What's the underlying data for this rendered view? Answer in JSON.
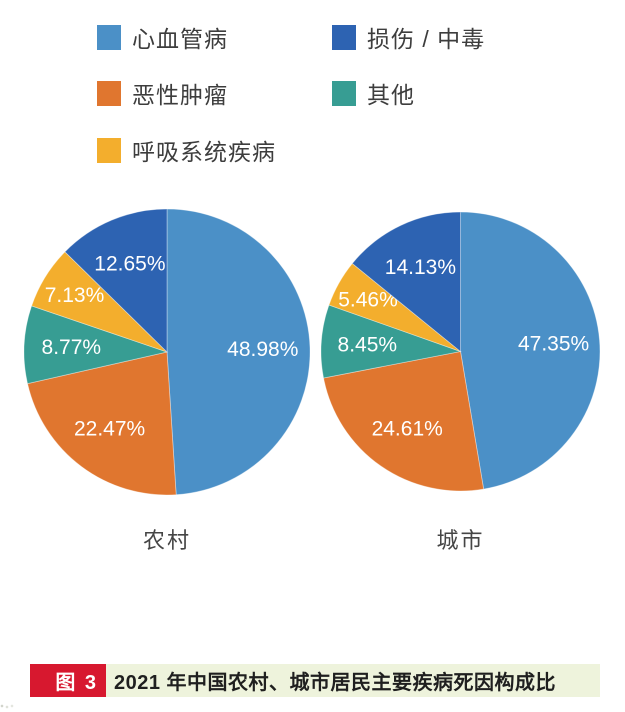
{
  "legend": {
    "items": [
      {
        "label": "心血管病",
        "color": "#4b90c7"
      },
      {
        "label": "损伤 / 中毒",
        "color": "#2d63b2"
      },
      {
        "label": "恶性肿瘤",
        "color": "#e0762f"
      },
      {
        "label": "其他",
        "color": "#379d93"
      },
      {
        "label": "呼吸系统疾病",
        "color": "#f3ae2d"
      }
    ]
  },
  "chart_data": [
    {
      "type": "pie",
      "title": "农村",
      "categories": [
        "心血管病",
        "恶性肿瘤",
        "其他",
        "呼吸系统疾病",
        "损伤 / 中毒"
      ],
      "values": [
        48.98,
        22.47,
        8.77,
        7.13,
        12.65
      ],
      "labels": [
        "48.98%",
        "22.47%",
        "8.77%",
        "7.13%",
        "12.65%"
      ],
      "colors": [
        "#4b90c7",
        "#e0762f",
        "#379d93",
        "#f3ae2d",
        "#2d63b2"
      ],
      "start_angle_deg": 0,
      "direction": "clockwise",
      "label_color": "#ffffff"
    },
    {
      "type": "pie",
      "title": "城市",
      "categories": [
        "心血管病",
        "恶性肿瘤",
        "其他",
        "呼吸系统疾病",
        "损伤 / 中毒"
      ],
      "values": [
        47.35,
        24.61,
        8.45,
        5.46,
        14.13
      ],
      "labels": [
        "47.35%",
        "24.61%",
        "8.45%",
        "5.46%",
        "14.13%"
      ],
      "colors": [
        "#4b90c7",
        "#e0762f",
        "#379d93",
        "#f3ae2d",
        "#2d63b2"
      ],
      "start_angle_deg": 0,
      "direction": "clockwise",
      "label_color": "#ffffff"
    }
  ],
  "caption": {
    "badge": "图 3",
    "text": "2021 年中国农村、城市居民主要疾病死因构成比",
    "badge_color": "#d7182f",
    "bar_color": "#eef3dc"
  }
}
